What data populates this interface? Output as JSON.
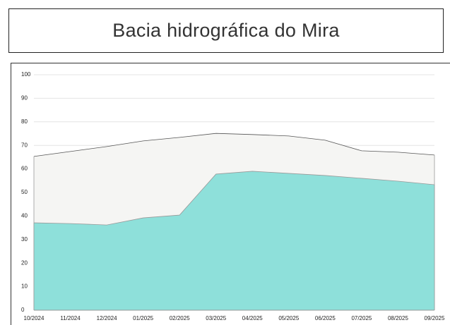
{
  "chart_data": {
    "type": "area",
    "title": "Bacia hidrográfica do Mira",
    "categories": [
      "10/2024",
      "11/2024",
      "12/2024",
      "01/2025",
      "02/2025",
      "03/2025",
      "04/2025",
      "05/2025",
      "06/2025",
      "07/2025",
      "08/2025",
      "09/2025"
    ],
    "series": [
      {
        "color": "#f5f5f3",
        "values": [
          65.3,
          67.4,
          69.5,
          71.9,
          73.4,
          75.1,
          74.6,
          74.0,
          72.2,
          67.7,
          67.1,
          65.9
        ]
      },
      {
        "color": "#8ee0da",
        "values": [
          37.1,
          36.8,
          36.2,
          39.2,
          40.4,
          57.8,
          59.0,
          58.1,
          57.2,
          56.0,
          54.8,
          53.3
        ]
      }
    ],
    "ylim": [
      0,
      100
    ],
    "yticks": [
      0,
      10,
      20,
      30,
      40,
      50,
      60,
      70,
      80,
      90,
      100
    ],
    "grid": true
  }
}
